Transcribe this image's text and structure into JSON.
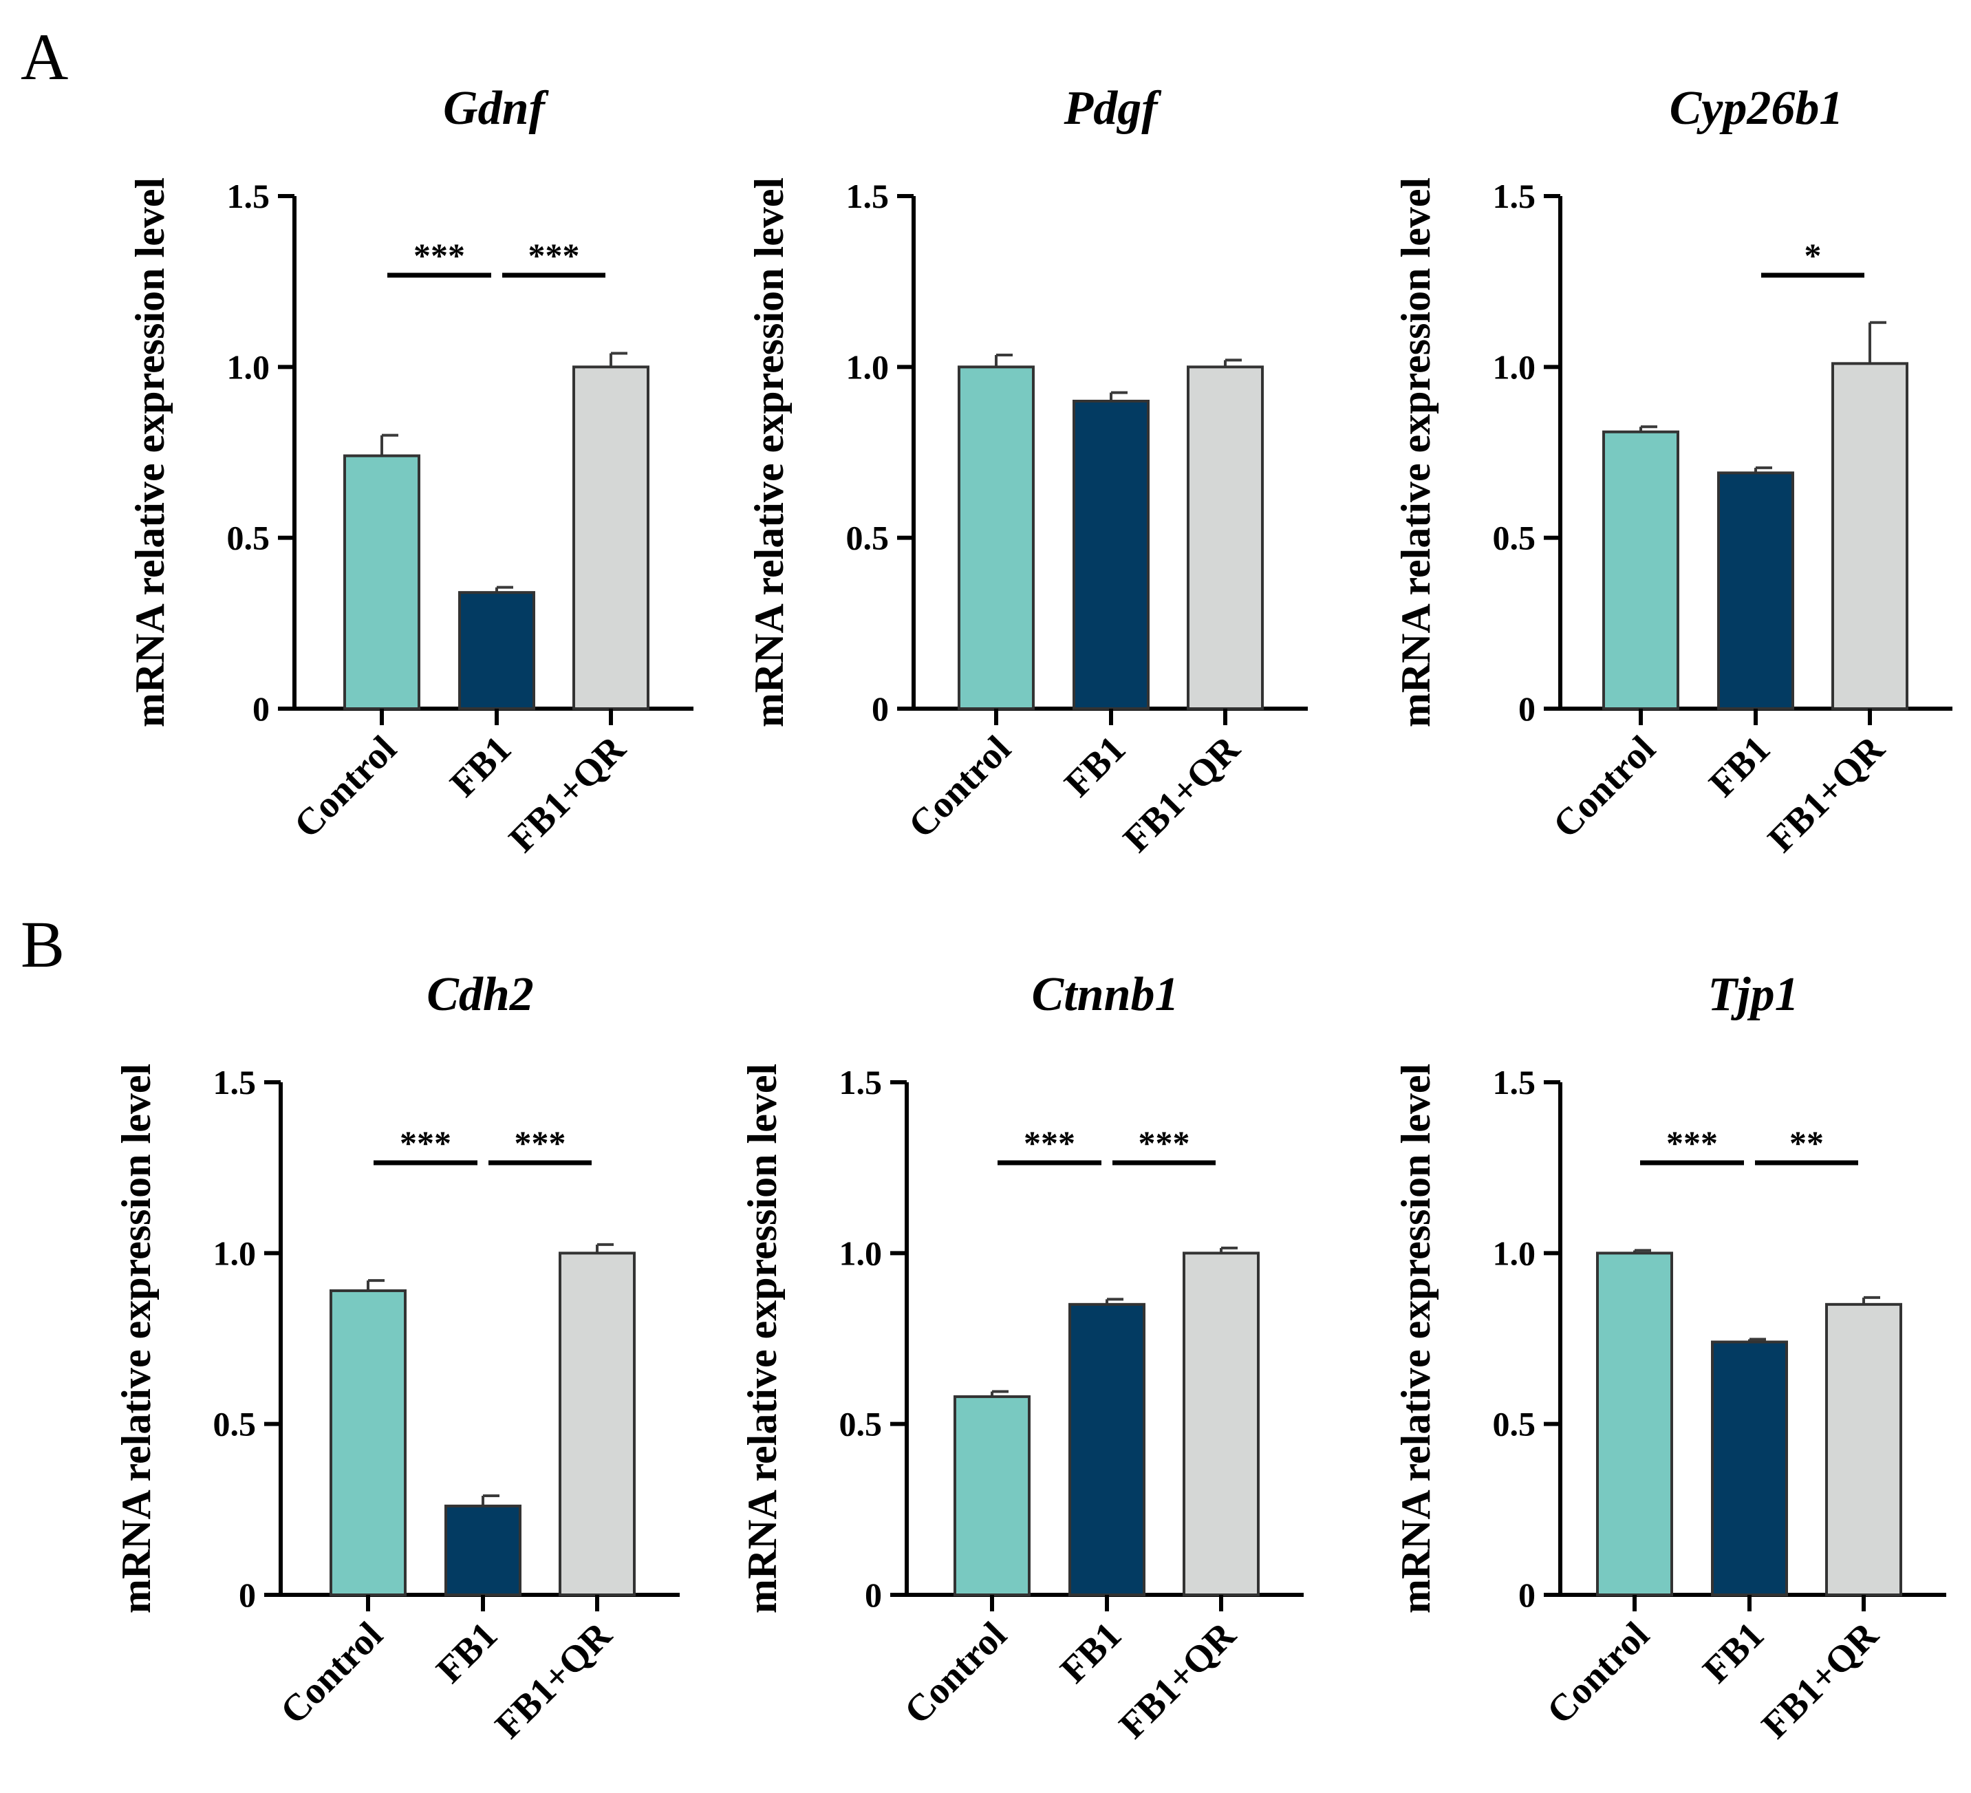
{
  "panels": [
    {
      "letter": "A"
    },
    {
      "letter": "B"
    }
  ],
  "colors": {
    "Control": "#79c9c1",
    "FB1": "#033b62",
    "FB1+QR": "#d5d7d6",
    "axis": "#000000"
  },
  "chart_data": [
    {
      "type": "bar",
      "panel": "A",
      "title": "Gdnf",
      "ylabel": "mRNA relative expression level",
      "xlabel": "",
      "ylim": [
        0,
        1.5
      ],
      "yticks": [
        0,
        0.5,
        1.0,
        1.5
      ],
      "ytick_labels": [
        "0",
        "0.5",
        "1.0",
        "1.5"
      ],
      "categories": [
        "Control",
        "FB1",
        "FB1+QR"
      ],
      "values": [
        0.74,
        0.34,
        1.0
      ],
      "errors": [
        0.06,
        0.015,
        0.04
      ],
      "significance": [
        {
          "from": 0,
          "to": 1,
          "label": "***"
        },
        {
          "from": 1,
          "to": 2,
          "label": "***"
        }
      ]
    },
    {
      "type": "bar",
      "panel": "A",
      "title": "Pdgf",
      "ylabel": "mRNA relative expression level",
      "xlabel": "",
      "ylim": [
        0,
        1.5
      ],
      "yticks": [
        0,
        0.5,
        1.0,
        1.5
      ],
      "ytick_labels": [
        "0",
        "0.5",
        "1.0",
        "1.5"
      ],
      "categories": [
        "Control",
        "FB1",
        "FB1+QR"
      ],
      "values": [
        1.0,
        0.9,
        1.0
      ],
      "errors": [
        0.035,
        0.025,
        0.02
      ],
      "significance": []
    },
    {
      "type": "bar",
      "panel": "A",
      "title": "Cyp26b1",
      "ylabel": "mRNA relative expression level",
      "xlabel": "",
      "ylim": [
        0,
        1.5
      ],
      "yticks": [
        0,
        0.5,
        1.0,
        1.5
      ],
      "ytick_labels": [
        "0",
        "0.5",
        "1.0",
        "1.5"
      ],
      "categories": [
        "Control",
        "FB1",
        "FB1+QR"
      ],
      "values": [
        0.81,
        0.69,
        1.01
      ],
      "errors": [
        0.015,
        0.015,
        0.12
      ],
      "significance": [
        {
          "from": 1,
          "to": 2,
          "label": "*"
        }
      ]
    },
    {
      "type": "bar",
      "panel": "B",
      "title": "Cdh2",
      "ylabel": "mRNA relative expression level",
      "xlabel": "",
      "ylim": [
        0,
        1.5
      ],
      "yticks": [
        0,
        0.5,
        1.0,
        1.5
      ],
      "ytick_labels": [
        "0",
        "0.5",
        "1.0",
        "1.5"
      ],
      "categories": [
        "Control",
        "FB1",
        "FB1+QR"
      ],
      "values": [
        0.89,
        0.26,
        1.0
      ],
      "errors": [
        0.03,
        0.03,
        0.025
      ],
      "significance": [
        {
          "from": 0,
          "to": 1,
          "label": "***"
        },
        {
          "from": 1,
          "to": 2,
          "label": "***"
        }
      ]
    },
    {
      "type": "bar",
      "panel": "B",
      "title": "Ctnnb1",
      "ylabel": "mRNA relative expression level",
      "xlabel": "",
      "ylim": [
        0,
        1.5
      ],
      "yticks": [
        0,
        0.5,
        1.0,
        1.5
      ],
      "ytick_labels": [
        "0",
        "0.5",
        "1.0",
        "1.5"
      ],
      "categories": [
        "Control",
        "FB1",
        "FB1+QR"
      ],
      "values": [
        0.58,
        0.85,
        1.0
      ],
      "errors": [
        0.015,
        0.015,
        0.015
      ],
      "significance": [
        {
          "from": 0,
          "to": 1,
          "label": "***"
        },
        {
          "from": 1,
          "to": 2,
          "label": "***"
        }
      ]
    },
    {
      "type": "bar",
      "panel": "B",
      "title": "Tjp1",
      "ylabel": "mRNA relative expression level",
      "xlabel": "",
      "ylim": [
        0,
        1.5
      ],
      "yticks": [
        0,
        0.5,
        1.0,
        1.5
      ],
      "ytick_labels": [
        "0",
        "0.5",
        "1.0",
        "1.5"
      ],
      "categories": [
        "Control",
        "FB1",
        "FB1+QR"
      ],
      "values": [
        1.0,
        0.74,
        0.85
      ],
      "errors": [
        0.008,
        0.008,
        0.02
      ],
      "significance": [
        {
          "from": 0,
          "to": 1,
          "label": "***"
        },
        {
          "from": 1,
          "to": 2,
          "label": "**"
        }
      ]
    }
  ]
}
